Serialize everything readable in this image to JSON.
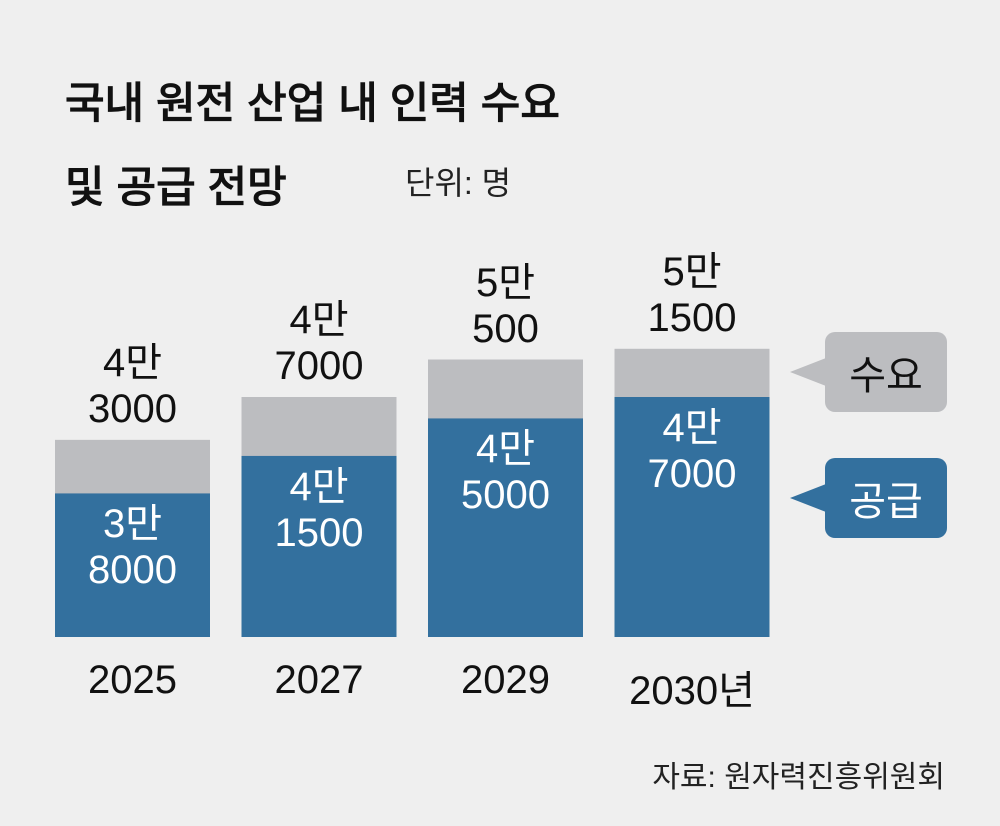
{
  "chart_data": {
    "type": "overlap-bar",
    "title": "국내 원전 산업 내 인력 수요\n및 공급 전망",
    "subtitle": "단위: 명",
    "source": "자료: 원자력진흥위원회",
    "categories": [
      "2025",
      "2027",
      "2029",
      "2030년"
    ],
    "series": [
      {
        "name": "수요",
        "color": "#bcbdc0",
        "values": [
          43000,
          47000,
          50500,
          51500
        ],
        "value_labels": [
          "4만\n3000",
          "4만\n7000",
          "5만\n500",
          "5만\n1500"
        ]
      },
      {
        "name": "공급",
        "color": "#33709e",
        "values": [
          38000,
          41500,
          45000,
          47000
        ],
        "value_labels": [
          "3만\n8000",
          "4만\n1500",
          "4만\n5000",
          "4만\n7000"
        ]
      }
    ],
    "ylim": [
      24600,
      54000
    ]
  }
}
